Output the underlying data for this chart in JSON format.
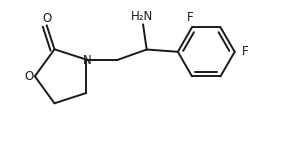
{
  "background": "#ffffff",
  "line_color": "#1a1a1a",
  "line_width": 1.4,
  "font_size": 8.5,
  "figsize": [
    2.96,
    1.48
  ],
  "dpi": 100,
  "xlim": [
    0.0,
    5.8
  ],
  "ylim": [
    0.0,
    3.2
  ]
}
